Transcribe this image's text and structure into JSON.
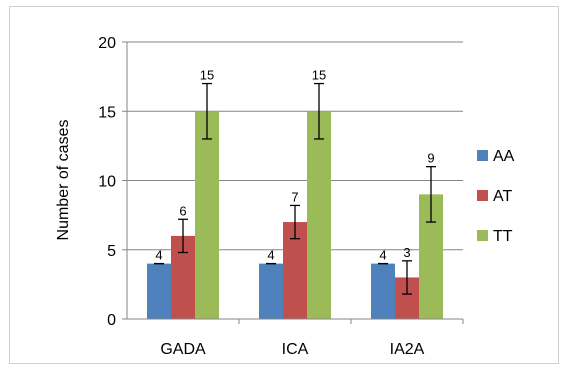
{
  "chart_data": {
    "type": "bar",
    "categories": [
      "GADA",
      "ICA",
      "IA2A"
    ],
    "series": [
      {
        "name": "AA",
        "color": "#4F81BD",
        "values": [
          4,
          4,
          4
        ],
        "errors": [
          0,
          0,
          0
        ]
      },
      {
        "name": "AT",
        "color": "#C0504D",
        "values": [
          6,
          7,
          3
        ],
        "errors": [
          1.2,
          1.2,
          1.2
        ]
      },
      {
        "name": "TT",
        "color": "#9BBB59",
        "values": [
          15,
          15,
          9
        ],
        "errors": [
          2,
          2,
          2
        ]
      }
    ],
    "ylabel": "Number of cases",
    "xlabel": "",
    "ylim": [
      0,
      20
    ],
    "yticks": [
      0,
      5,
      10,
      15,
      20
    ],
    "grid": true,
    "legend": "right",
    "data_labels": true
  }
}
